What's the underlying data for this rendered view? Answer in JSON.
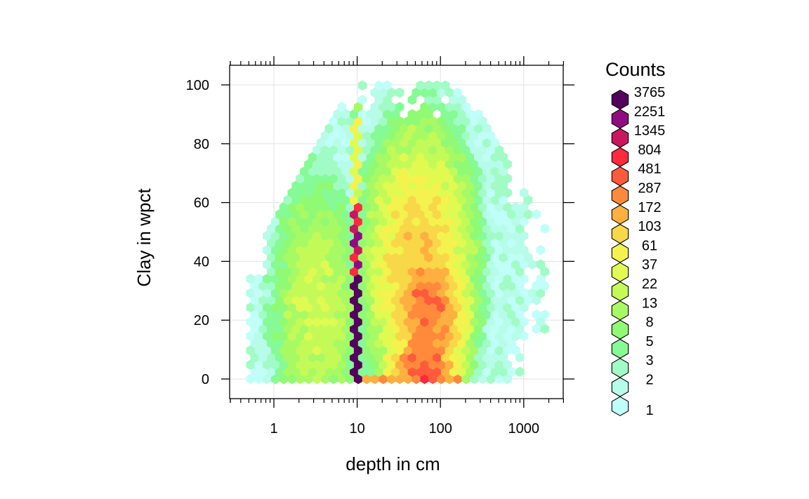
{
  "chart_data": {
    "type": "heatmap",
    "subtype": "hexbin",
    "xlabel": "depth in cm",
    "ylabel": "Clay in wpct",
    "x_scale": "log10",
    "x_range": [
      0.3,
      3000
    ],
    "y_range": [
      -6,
      107
    ],
    "x_ticks": [
      {
        "value": 1,
        "label": "1"
      },
      {
        "value": 10,
        "label": "10"
      },
      {
        "value": 100,
        "label": "100"
      },
      {
        "value": 1000,
        "label": "1000"
      }
    ],
    "y_ticks": [
      {
        "value": 0,
        "label": "0"
      },
      {
        "value": 20,
        "label": "20"
      },
      {
        "value": 40,
        "label": "40"
      },
      {
        "value": 60,
        "label": "60"
      },
      {
        "value": 80,
        "label": "80"
      },
      {
        "value": 100,
        "label": "100"
      }
    ],
    "grid": true,
    "legend": {
      "title": "Counts",
      "position": "right",
      "entries": [
        {
          "label": "3765",
          "color": "#54005e"
        },
        {
          "label": "2251",
          "color": "#900b82"
        },
        {
          "label": "1345",
          "color": "#c8175f"
        },
        {
          "label": "804",
          "color": "#ff2a3d"
        },
        {
          "label": "481",
          "color": "#ff5a3b"
        },
        {
          "label": "287",
          "color": "#ff8a3c"
        },
        {
          "label": "172",
          "color": "#fdb03f"
        },
        {
          "label": "103",
          "color": "#f8d748"
        },
        {
          "label": "61",
          "color": "#f3f24e"
        },
        {
          "label": "37",
          "color": "#e0fa52"
        },
        {
          "label": "22",
          "color": "#c4fa58"
        },
        {
          "label": "13",
          "color": "#a8fa64"
        },
        {
          "label": "8",
          "color": "#90fa74"
        },
        {
          "label": "5",
          "color": "#86fa94"
        },
        {
          "label": "3",
          "color": "#a0fcc4"
        },
        {
          "label": "2",
          "color": "#b6fce8"
        },
        {
          "label": "1",
          "color": "#bffff8"
        }
      ]
    },
    "approx_density_level_by_region": "hexagon colors encode counts per bin; dense band at depth ~10 cm (levels 2251-3765); broad high-count region 20-200 cm depth, 0-50 wpct clay"
  }
}
